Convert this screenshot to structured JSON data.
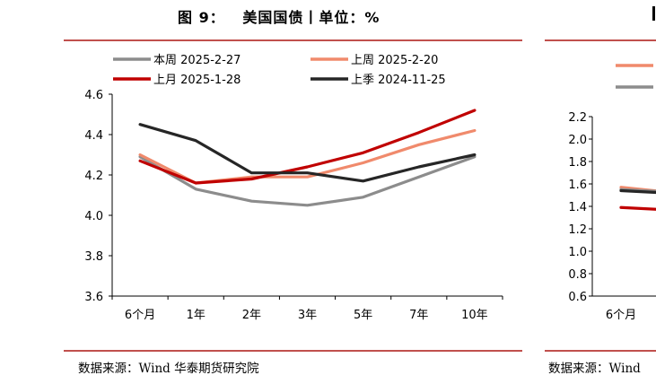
{
  "left_chart": {
    "title": "图 9：   美国国债丨单位：%",
    "source": "数据来源：Wind 华泰期货研究院"
  },
  "right_chart_partial": {
    "source": "数据来源：Wind"
  },
  "colors": {
    "rule": "#c0504d",
    "current_week": "#8c8c8c",
    "last_week": "#f08a6c",
    "last_month": "#c00000",
    "last_quarter": "#262626"
  },
  "chart_data": [
    {
      "type": "line",
      "title": "美国国债",
      "categories": [
        "6个月",
        "1年",
        "2年",
        "3年",
        "5年",
        "7年",
        "10年"
      ],
      "ylim": [
        3.6,
        4.6
      ],
      "yticks": [
        "3.6",
        "3.8",
        "4.0",
        "4.2",
        "4.4",
        "4.6"
      ],
      "series": [
        {
          "name": "本周  2025-2-27",
          "color": "#8c8c8c",
          "values": [
            4.29,
            4.13,
            4.07,
            4.05,
            4.09,
            4.19,
            4.29
          ]
        },
        {
          "name": "上周  2025-2-20",
          "color": "#f08a6c",
          "values": [
            4.3,
            4.16,
            4.19,
            4.19,
            4.26,
            4.35,
            4.42
          ]
        },
        {
          "name": "上月  2025-1-28",
          "color": "#c00000",
          "values": [
            4.27,
            4.16,
            4.18,
            4.24,
            4.31,
            4.41,
            4.52
          ]
        },
        {
          "name": "上季  2024-11-25",
          "color": "#262626",
          "values": [
            4.45,
            4.37,
            4.21,
            4.21,
            4.17,
            4.24,
            4.3
          ]
        }
      ]
    },
    {
      "type": "line",
      "title": "",
      "categories": [
        "6个月"
      ],
      "ylim": [
        0.6,
        2.2
      ],
      "yticks": [
        "0.6",
        "0.8",
        "1.0",
        "1.2",
        "1.4",
        "1.6",
        "1.8",
        "2.0",
        "2.2"
      ],
      "series": [
        {
          "name": "",
          "color": "#f08a6c",
          "values": [
            1.57
          ]
        },
        {
          "name": "",
          "color": "#8c8c8c",
          "values": [
            1.55
          ]
        },
        {
          "name": "",
          "color": "#262626",
          "values": [
            1.54
          ]
        },
        {
          "name": "",
          "color": "#c00000",
          "values": [
            1.39
          ]
        }
      ]
    }
  ]
}
